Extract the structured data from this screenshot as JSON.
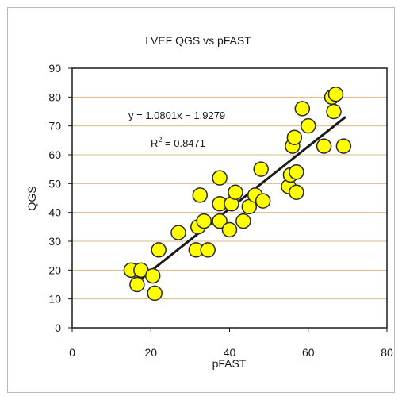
{
  "chart_data": {
    "type": "scatter",
    "title": "LVEF QGS vs pFAST",
    "xlabel": "pFAST",
    "ylabel": "QGS",
    "xlim": [
      0,
      80
    ],
    "ylim": [
      0,
      90
    ],
    "x_ticks": [
      "0",
      "20",
      "40",
      "60",
      "80"
    ],
    "y_ticks": [
      "0",
      "10",
      "20",
      "30",
      "40",
      "50",
      "60",
      "70",
      "80",
      "90"
    ],
    "grid": "horizontal",
    "colors": {
      "marker_fill": "#ffff00",
      "marker_edge": "#2a2a2a",
      "trendline": "#1a1a1a",
      "gridline": "#d9b98a",
      "plot_border": "#1a1a1a",
      "frame": "#b9b9b9"
    },
    "points": [
      {
        "x": 15,
        "y": 20
      },
      {
        "x": 16.5,
        "y": 15
      },
      {
        "x": 17.5,
        "y": 20
      },
      {
        "x": 20.5,
        "y": 18
      },
      {
        "x": 21,
        "y": 12
      },
      {
        "x": 22,
        "y": 27
      },
      {
        "x": 27,
        "y": 33
      },
      {
        "x": 31.5,
        "y": 27
      },
      {
        "x": 32,
        "y": 35
      },
      {
        "x": 32.5,
        "y": 46
      },
      {
        "x": 33.5,
        "y": 37
      },
      {
        "x": 34.5,
        "y": 27
      },
      {
        "x": 37.5,
        "y": 43
      },
      {
        "x": 37.5,
        "y": 37
      },
      {
        "x": 37.5,
        "y": 52
      },
      {
        "x": 40,
        "y": 34
      },
      {
        "x": 40.5,
        "y": 43
      },
      {
        "x": 41.5,
        "y": 47
      },
      {
        "x": 43.5,
        "y": 37
      },
      {
        "x": 45,
        "y": 42
      },
      {
        "x": 46.5,
        "y": 46
      },
      {
        "x": 48,
        "y": 55
      },
      {
        "x": 48.5,
        "y": 44
      },
      {
        "x": 55,
        "y": 49
      },
      {
        "x": 55.5,
        "y": 53
      },
      {
        "x": 56,
        "y": 63
      },
      {
        "x": 56.5,
        "y": 66
      },
      {
        "x": 57,
        "y": 54
      },
      {
        "x": 57,
        "y": 47
      },
      {
        "x": 58.5,
        "y": 76
      },
      {
        "x": 60,
        "y": 70
      },
      {
        "x": 64,
        "y": 63
      },
      {
        "x": 66,
        "y": 80
      },
      {
        "x": 66.5,
        "y": 75
      },
      {
        "x": 67,
        "y": 81
      },
      {
        "x": 69,
        "y": 63
      }
    ],
    "trendline": {
      "slope": 1.0801,
      "intercept": -1.9279,
      "x_range": [
        16,
        69.5
      ],
      "equation": "y = 1.0801x − 1.9279",
      "r2_label": "R",
      "r2_sup": "2",
      "r2_value": " = 0.8471"
    }
  }
}
